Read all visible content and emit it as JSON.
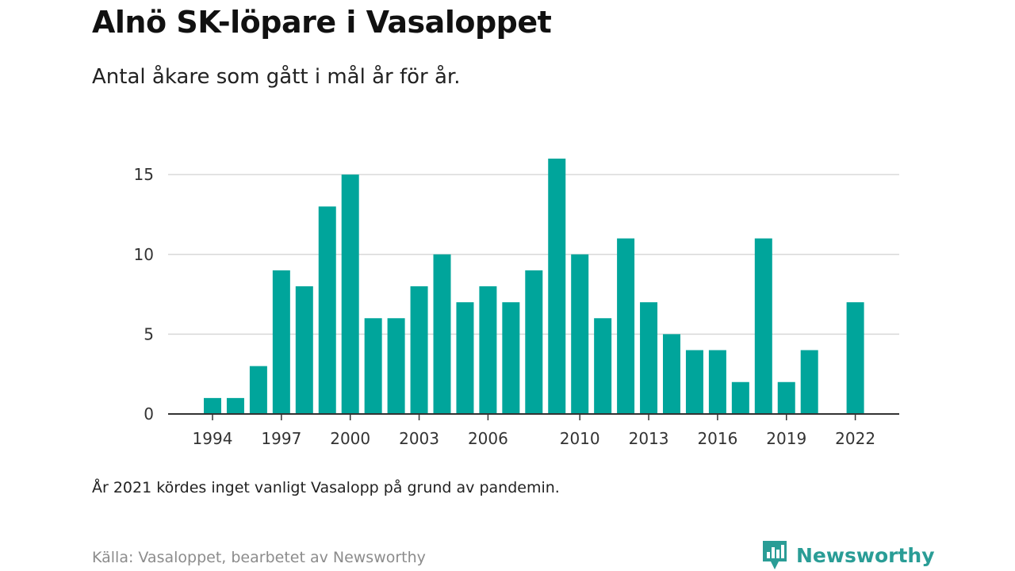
{
  "title": "Alnö SK-löpare i Vasaloppet",
  "subtitle": "Antal åkare som gått i mål år för år.",
  "note": "År 2021 kördes inget vanligt Vasalopp på grund av pandemin.",
  "source": "Källa: Vasaloppet, bearbetet av Newsworthy",
  "brand": {
    "name": "Newsworthy",
    "icon": "newsworthy-logo-icon"
  },
  "colors": {
    "bar": "#00a59b",
    "grid": "#d9d9d9",
    "axis": "#333333",
    "brand": "#2a9d96"
  },
  "chart_data": {
    "type": "bar",
    "title": "Alnö SK-löpare i Vasaloppet",
    "subtitle": "Antal åkare som gått i mål år för år.",
    "xlabel": "",
    "ylabel": "",
    "ylim": [
      0,
      16
    ],
    "yticks": [
      0,
      5,
      10,
      15
    ],
    "xticks": [
      1994,
      1997,
      2000,
      2003,
      2006,
      2010,
      2013,
      2016,
      2019,
      2022
    ],
    "grid": true,
    "legend": "none",
    "categories": [
      1994,
      1995,
      1996,
      1997,
      1998,
      1999,
      2000,
      2001,
      2002,
      2003,
      2004,
      2005,
      2006,
      2007,
      2008,
      2009,
      2010,
      2011,
      2012,
      2013,
      2014,
      2015,
      2016,
      2017,
      2018,
      2019,
      2020,
      2021,
      2022
    ],
    "values": [
      1,
      1,
      3,
      9,
      8,
      13,
      15,
      6,
      6,
      8,
      10,
      7,
      8,
      7,
      9,
      16,
      10,
      6,
      11,
      7,
      5,
      4,
      4,
      2,
      11,
      2,
      4,
      0,
      7
    ]
  }
}
